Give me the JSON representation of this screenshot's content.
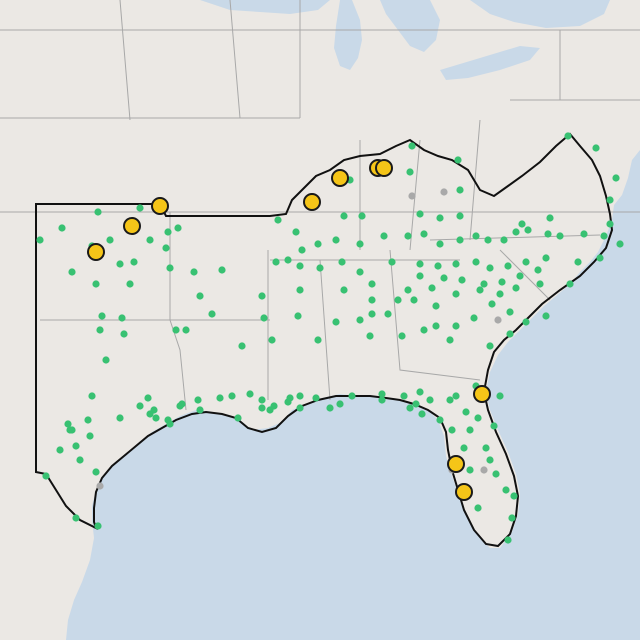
{
  "map": {
    "colors": {
      "land": "#ebe8e4",
      "water": "#c9d9e8",
      "state_border": "#a8a8a8",
      "region_border": "#111111",
      "green_marker": "#38c172",
      "gold_marker": "#f5c518",
      "gold_marker_stroke": "#1a1a1a",
      "gray_marker": "#a9a9a9"
    },
    "marker_types": [
      "green-dot",
      "gold-circle",
      "gray-dot"
    ],
    "counts": {
      "green_dots": 200,
      "gold_circles": 11,
      "gray_dots": 6
    }
  }
}
